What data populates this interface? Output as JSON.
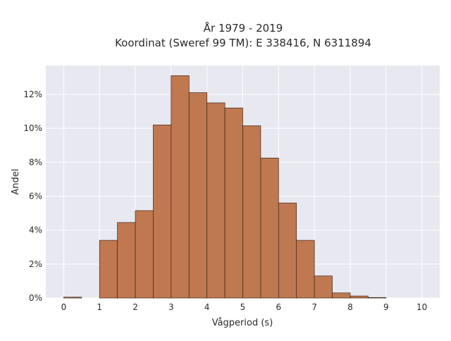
{
  "chart_data": {
    "type": "bar",
    "title": "År 1979 - 2019",
    "subtitle": "Koordinat (Sweref 99 TM): E 338416, N 6311894",
    "xlabel": "Vågperiod (s)",
    "ylabel": "Andel",
    "xlim": [
      -0.5,
      10.5
    ],
    "ylim": [
      0,
      13.7
    ],
    "x_ticks": [
      0,
      1,
      2,
      3,
      4,
      5,
      6,
      7,
      8,
      9,
      10
    ],
    "x_tick_labels": [
      "0",
      "1",
      "2",
      "3",
      "4",
      "5",
      "6",
      "7",
      "8",
      "9",
      "10"
    ],
    "y_ticks": [
      0,
      2,
      4,
      6,
      8,
      10,
      12
    ],
    "y_tick_labels": [
      "0%",
      "2%",
      "4%",
      "6%",
      "8%",
      "10%",
      "12%"
    ],
    "y_unit": "%",
    "bin_width": 0.5,
    "bins": [
      {
        "start": 0.0,
        "value": 0.05
      },
      {
        "start": 0.5,
        "value": 0.0
      },
      {
        "start": 1.0,
        "value": 3.4
      },
      {
        "start": 1.5,
        "value": 4.45
      },
      {
        "start": 2.0,
        "value": 5.15
      },
      {
        "start": 2.5,
        "value": 10.2
      },
      {
        "start": 3.0,
        "value": 13.1
      },
      {
        "start": 3.5,
        "value": 12.1
      },
      {
        "start": 4.0,
        "value": 11.5
      },
      {
        "start": 4.5,
        "value": 11.2
      },
      {
        "start": 5.0,
        "value": 10.15
      },
      {
        "start": 5.5,
        "value": 8.25
      },
      {
        "start": 6.0,
        "value": 5.6
      },
      {
        "start": 6.5,
        "value": 3.4
      },
      {
        "start": 7.0,
        "value": 1.3
      },
      {
        "start": 7.5,
        "value": 0.3
      },
      {
        "start": 8.0,
        "value": 0.12
      },
      {
        "start": 8.5,
        "value": 0.03
      }
    ],
    "grid": true,
    "legend": false,
    "colors": {
      "bar_fill": "#c07850",
      "bar_stroke": "#3d2618",
      "plot_background": "#e8e8f0",
      "grid": "#ffffff"
    }
  }
}
